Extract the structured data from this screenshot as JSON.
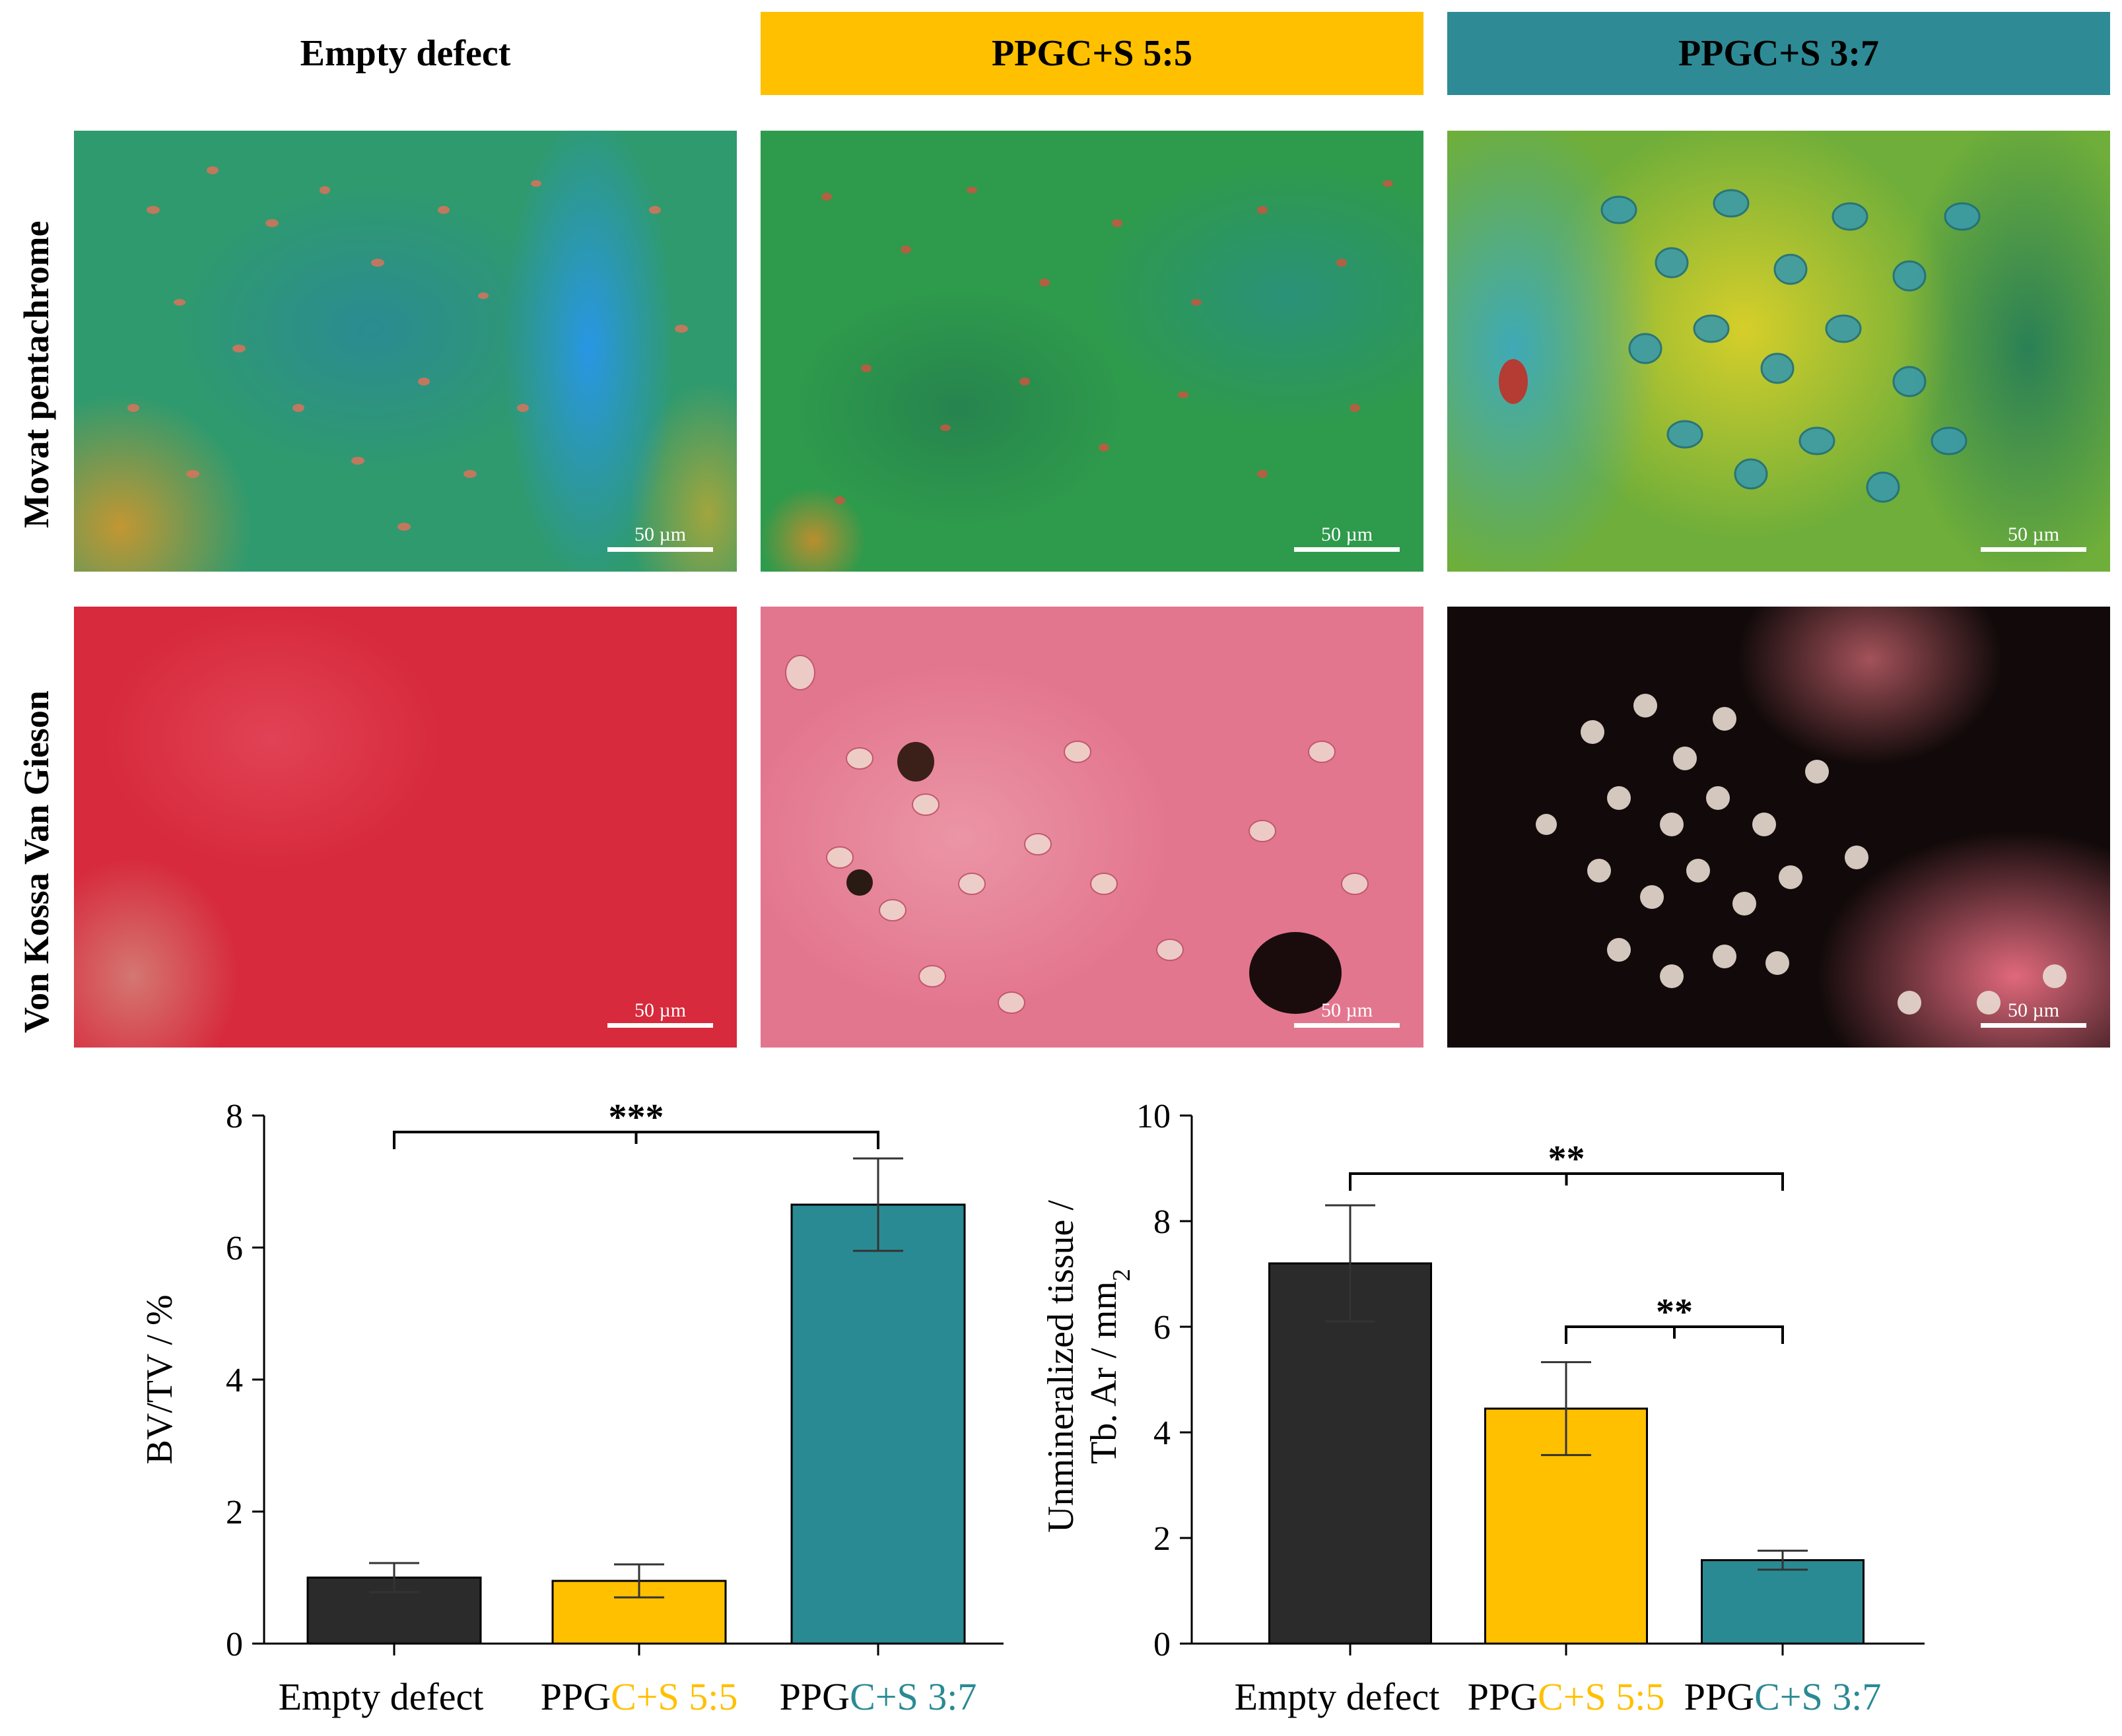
{
  "columns": [
    {
      "label": "Empty defect",
      "header_color": "#ffffff"
    },
    {
      "label": "PPGC+S 5:5",
      "header_color": "#ffc000"
    },
    {
      "label": "PPGC+S 3:7",
      "header_color": "#2e8b95"
    }
  ],
  "rows": [
    {
      "label": "Movat pentachrome"
    },
    {
      "label": "Von Kossa Van Gieson"
    }
  ],
  "scale_bar_label": "50 µm",
  "colors": {
    "empty": "#2b2b2b",
    "ppgc55": "#ffc000",
    "ppgc37": "#2a8a93"
  },
  "x_label_parts": [
    {
      "prefix": "Empty defect",
      "suffix": ""
    },
    {
      "prefix": "PPG",
      "suffix": "C+S 5:5"
    },
    {
      "prefix": "PPG",
      "suffix": "C+S 3:7"
    }
  ],
  "chart_data": [
    {
      "type": "bar",
      "categories": [
        "Empty defect",
        "PPGC+S 5:5",
        "PPGC+S 3:7"
      ],
      "values": [
        1.0,
        0.95,
        6.65
      ],
      "errors": [
        0.22,
        0.25,
        0.7
      ],
      "ylabel": "BV/TV / %",
      "ylim": [
        0,
        8
      ],
      "yticks": [
        0,
        2,
        4,
        6,
        8
      ],
      "significance": [
        {
          "from": 0,
          "to": 2,
          "label": "***"
        }
      ]
    },
    {
      "type": "bar",
      "categories": [
        "Empty defect",
        "PPGC+S 5:5",
        "PPGC+S 3:7"
      ],
      "values": [
        7.2,
        4.45,
        1.58
      ],
      "errors": [
        1.1,
        0.88,
        0.18
      ],
      "ylabel_line1": "Unmineralized tissue /",
      "ylabel_line2": "Tb. Ar / mm",
      "ylabel_sub": "2",
      "ylim": [
        0,
        10
      ],
      "yticks": [
        0,
        2,
        4,
        6,
        8,
        10
      ],
      "significance": [
        {
          "from": 0,
          "to": 2,
          "label": "**"
        },
        {
          "from": 1,
          "to": 2,
          "label": "**"
        }
      ]
    }
  ]
}
